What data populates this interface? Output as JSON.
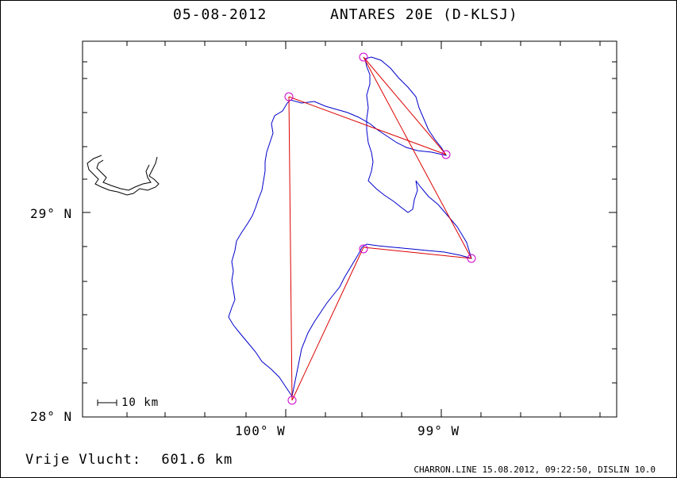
{
  "header": {
    "date": "05-08-2012",
    "aircraft": "ANTARES 20E (D-KLSJ)"
  },
  "axes": {
    "y_labels": [
      "29° N",
      "28° N"
    ],
    "x_labels": [
      "100° W",
      "99° W"
    ]
  },
  "scale_bar": {
    "label": "10 km"
  },
  "footer": {
    "distance_label": "Vrije Vlucht:",
    "distance_value": "601.6 km",
    "credit": "CHARRON.LINE 15.08.2012, 09:22:50, DISLIN 10.0"
  },
  "colors": {
    "track": "#0000cc",
    "task": "#dd0000",
    "turnpoint": "#cc00cc",
    "frame": "#000000"
  },
  "turnpoints": [
    "start",
    "tp1",
    "tp2",
    "tp3",
    "tp4",
    "finish"
  ]
}
